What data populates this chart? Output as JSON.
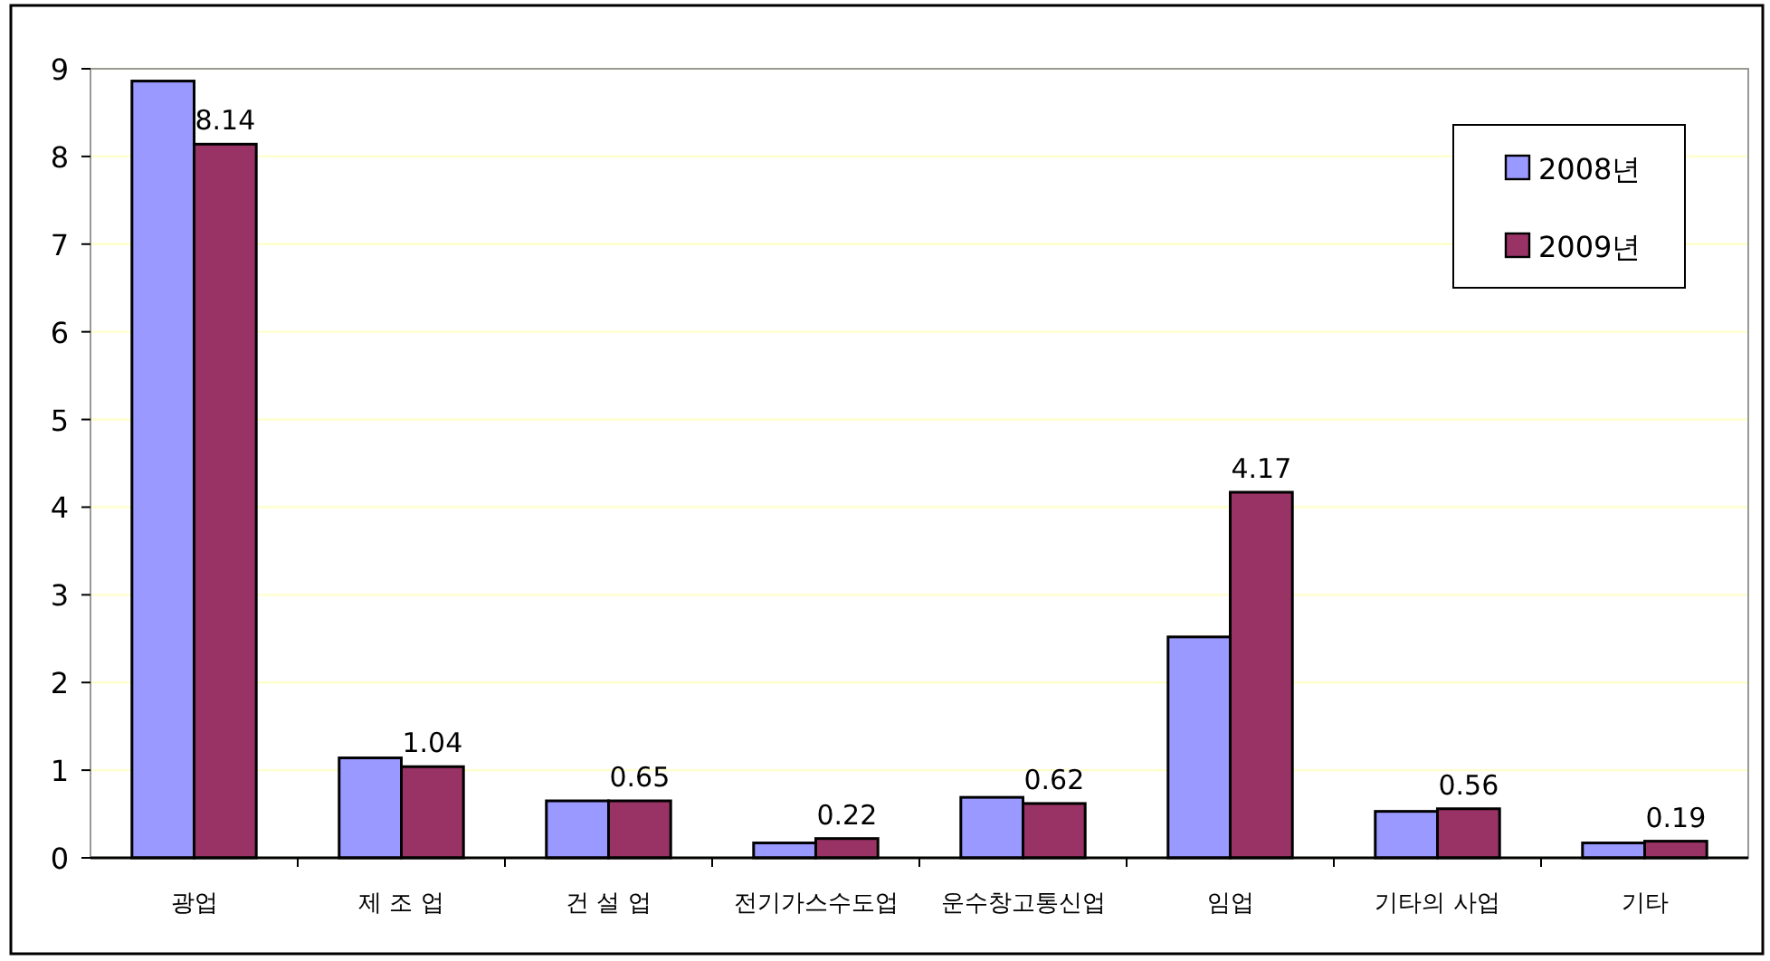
{
  "chart_data": {
    "type": "bar",
    "categories": [
      "광업",
      "제 조 업",
      "건 설 업",
      "전기가스수도업",
      "운수창고통신업",
      "임업",
      "기타의 사업",
      "기타"
    ],
    "series": [
      {
        "name": "2008년",
        "color": "#9999ff",
        "values": [
          8.86,
          1.14,
          0.65,
          0.17,
          0.69,
          2.52,
          0.53,
          0.17
        ]
      },
      {
        "name": "2009년",
        "color": "#993366",
        "values": [
          8.14,
          1.04,
          0.65,
          0.22,
          0.62,
          4.17,
          0.56,
          0.19
        ],
        "value_labels": [
          "8.14",
          "1.04",
          "0.65",
          "0.22",
          "0.62",
          "4.17",
          "0.56",
          "0.19"
        ]
      }
    ],
    "ylim": [
      0,
      9
    ],
    "yticks": [
      0,
      1,
      2,
      3,
      4,
      5,
      6,
      7,
      8,
      9
    ],
    "grid": "y",
    "legend": "top right"
  }
}
